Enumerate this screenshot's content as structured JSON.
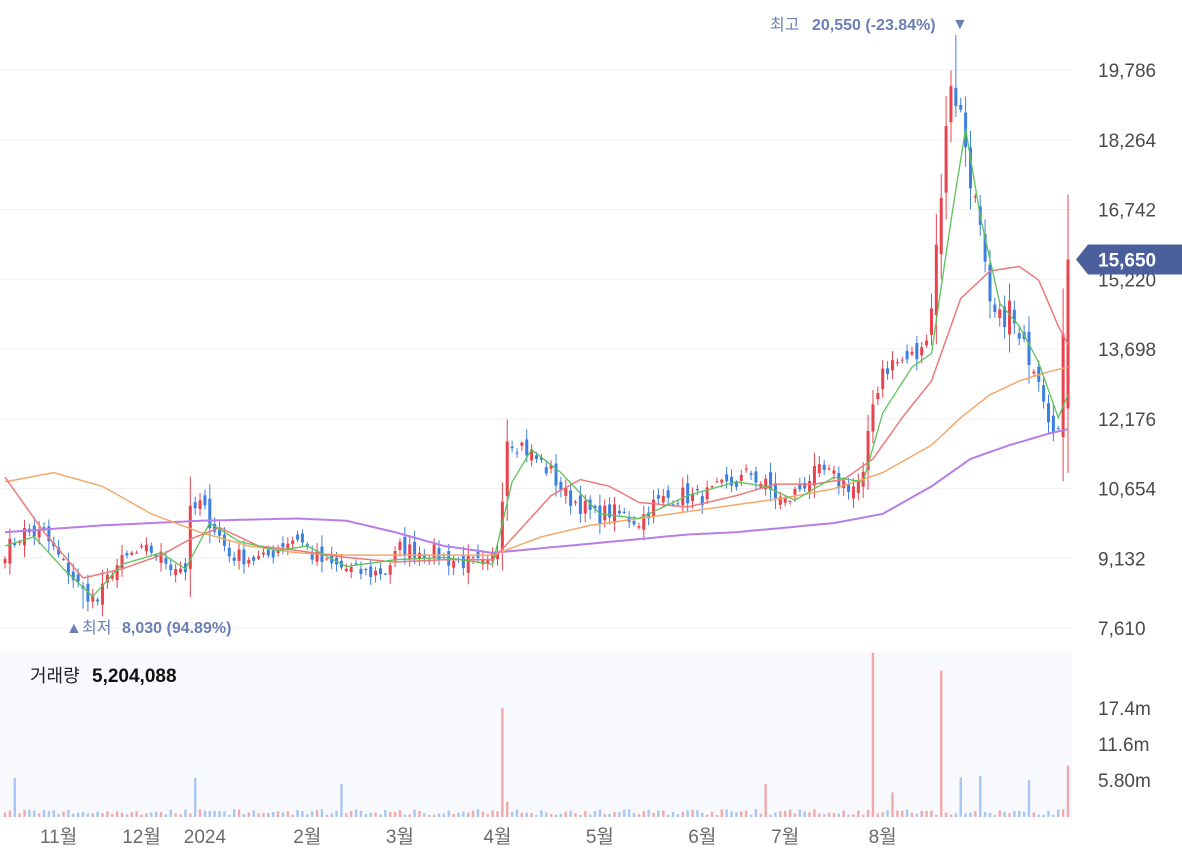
{
  "chart_data": {
    "type": "candlestick",
    "price_axis": {
      "range": [
        7610,
        20550
      ],
      "ticks": [
        "19,786",
        "18,264",
        "16,742",
        "15,220",
        "13,698",
        "12,176",
        "10,654",
        "9,132",
        "7,610"
      ]
    },
    "months": [
      "11월",
      "12월",
      "2024",
      "2월",
      "3월",
      "4월",
      "5월",
      "6월",
      "7월",
      "8월"
    ],
    "current_price": {
      "label": "15,650",
      "value": 15650
    },
    "high_marker": {
      "label": "최고",
      "value_text": "20,550 (-23.84%)",
      "value": 20550,
      "arrow": "▼"
    },
    "low_marker": {
      "label": "최저",
      "value_text": "8,030 (94.89%)",
      "value": 8030,
      "arrow": "▲"
    },
    "volume": {
      "title": "거래량",
      "current": "5,204,088",
      "ticks": [
        "17.4m",
        "11.6m",
        "5.80m"
      ],
      "ticks_values": [
        17.4,
        11.6,
        5.8
      ]
    },
    "colors": {
      "up": "#e8434f",
      "down": "#3d7fe0",
      "ma5": "#5cc35a",
      "ma20": "#ec7a7a",
      "ma60": "#f4a96b",
      "ma120": "#b77ee8",
      "badge": "#4a5f9c"
    },
    "series_anchors": {
      "close": [
        [
          0,
          9300
        ],
        [
          4,
          9700
        ],
        [
          8,
          9650
        ],
        [
          12,
          9000
        ],
        [
          16,
          8400
        ],
        [
          19,
          8200
        ],
        [
          22,
          8900
        ],
        [
          26,
          9200
        ],
        [
          30,
          9300
        ],
        [
          34,
          9000
        ],
        [
          37,
          8900
        ],
        [
          38,
          10100
        ],
        [
          40,
          10300
        ],
        [
          43,
          9800
        ],
        [
          46,
          9200
        ],
        [
          50,
          9150
        ],
        [
          53,
          9100
        ],
        [
          57,
          9450
        ],
        [
          60,
          9600
        ],
        [
          63,
          9200
        ],
        [
          66,
          9000
        ],
        [
          70,
          8900
        ],
        [
          74,
          8800
        ],
        [
          78,
          8850
        ],
        [
          81,
          9350
        ],
        [
          84,
          9300
        ],
        [
          88,
          9250
        ],
        [
          91,
          9100
        ],
        [
          94,
          9050
        ],
        [
          97,
          9000
        ],
        [
          99,
          8950
        ],
        [
          101,
          9350
        ],
        [
          103,
          11800
        ],
        [
          106,
          11600
        ],
        [
          109,
          11300
        ],
        [
          112,
          11000
        ],
        [
          115,
          10500
        ],
        [
          118,
          10300
        ],
        [
          121,
          10050
        ],
        [
          124,
          10150
        ],
        [
          127,
          10050
        ],
        [
          130,
          9950
        ],
        [
          133,
          10300
        ],
        [
          136,
          10450
        ],
        [
          139,
          10500
        ],
        [
          142,
          10450
        ],
        [
          145,
          10550
        ],
        [
          148,
          10700
        ],
        [
          151,
          10850
        ],
        [
          153,
          11000
        ],
        [
          155,
          10800
        ],
        [
          158,
          10500
        ],
        [
          160,
          10350
        ],
        [
          162,
          10550
        ],
        [
          165,
          10900
        ],
        [
          168,
          11000
        ],
        [
          171,
          10800
        ],
        [
          174,
          10700
        ],
        [
          176,
          10900
        ],
        [
          178,
          12500
        ],
        [
          180,
          13300
        ],
        [
          183,
          13400
        ],
        [
          186,
          13500
        ],
        [
          188,
          13600
        ],
        [
          190,
          14700
        ],
        [
          192,
          17200
        ],
        [
          194,
          19600
        ],
        [
          196,
          18800
        ],
        [
          198,
          17500
        ],
        [
          200,
          16200
        ],
        [
          202,
          14500
        ],
        [
          204,
          14300
        ],
        [
          206,
          14600
        ],
        [
          208,
          13800
        ],
        [
          210,
          13600
        ],
        [
          212,
          13200
        ],
        [
          214,
          12300
        ],
        [
          216,
          11900
        ],
        [
          218,
          15650
        ]
      ],
      "ma5": [
        [
          0,
          9400
        ],
        [
          6,
          9600
        ],
        [
          12,
          8900
        ],
        [
          18,
          8300
        ],
        [
          24,
          9000
        ],
        [
          32,
          9250
        ],
        [
          37,
          8900
        ],
        [
          42,
          9900
        ],
        [
          48,
          9500
        ],
        [
          56,
          9300
        ],
        [
          62,
          9400
        ],
        [
          70,
          8950
        ],
        [
          80,
          9100
        ],
        [
          90,
          9150
        ],
        [
          100,
          9000
        ],
        [
          104,
          10800
        ],
        [
          108,
          11500
        ],
        [
          114,
          11000
        ],
        [
          122,
          10100
        ],
        [
          130,
          10000
        ],
        [
          140,
          10500
        ],
        [
          150,
          10800
        ],
        [
          156,
          10700
        ],
        [
          162,
          10400
        ],
        [
          170,
          10900
        ],
        [
          176,
          10800
        ],
        [
          180,
          12300
        ],
        [
          186,
          13300
        ],
        [
          190,
          13600
        ],
        [
          194,
          16500
        ],
        [
          197,
          18500
        ],
        [
          200,
          16600
        ],
        [
          204,
          14700
        ],
        [
          208,
          14200
        ],
        [
          212,
          13400
        ],
        [
          216,
          12200
        ],
        [
          218,
          12700
        ]
      ],
      "ma20": [
        [
          0,
          10900
        ],
        [
          8,
          9700
        ],
        [
          16,
          8700
        ],
        [
          24,
          8900
        ],
        [
          32,
          9200
        ],
        [
          38,
          9550
        ],
        [
          44,
          9800
        ],
        [
          52,
          9400
        ],
        [
          60,
          9300
        ],
        [
          70,
          9150
        ],
        [
          80,
          9050
        ],
        [
          90,
          9100
        ],
        [
          100,
          9100
        ],
        [
          106,
          9800
        ],
        [
          112,
          10500
        ],
        [
          118,
          10850
        ],
        [
          124,
          10700
        ],
        [
          130,
          10350
        ],
        [
          140,
          10250
        ],
        [
          150,
          10500
        ],
        [
          158,
          10750
        ],
        [
          166,
          10750
        ],
        [
          172,
          10850
        ],
        [
          178,
          11300
        ],
        [
          184,
          12200
        ],
        [
          190,
          13000
        ],
        [
          196,
          14800
        ],
        [
          202,
          15400
        ],
        [
          208,
          15500
        ],
        [
          212,
          15200
        ],
        [
          216,
          14200
        ],
        [
          218,
          13800
        ]
      ],
      "ma60": [
        [
          0,
          10800
        ],
        [
          10,
          11000
        ],
        [
          20,
          10700
        ],
        [
          30,
          10100
        ],
        [
          40,
          9700
        ],
        [
          50,
          9400
        ],
        [
          60,
          9250
        ],
        [
          70,
          9200
        ],
        [
          80,
          9200
        ],
        [
          90,
          9200
        ],
        [
          100,
          9200
        ],
        [
          110,
          9600
        ],
        [
          120,
          9850
        ],
        [
          130,
          10000
        ],
        [
          140,
          10150
        ],
        [
          150,
          10300
        ],
        [
          160,
          10450
        ],
        [
          170,
          10650
        ],
        [
          180,
          11000
        ],
        [
          190,
          11600
        ],
        [
          196,
          12200
        ],
        [
          202,
          12700
        ],
        [
          208,
          13000
        ],
        [
          214,
          13200
        ],
        [
          218,
          13300
        ]
      ],
      "ma120": [
        [
          0,
          9700
        ],
        [
          20,
          9850
        ],
        [
          40,
          9950
        ],
        [
          60,
          10000
        ],
        [
          70,
          9950
        ],
        [
          80,
          9700
        ],
        [
          90,
          9400
        ],
        [
          100,
          9250
        ],
        [
          110,
          9350
        ],
        [
          120,
          9450
        ],
        [
          130,
          9550
        ],
        [
          140,
          9650
        ],
        [
          150,
          9700
        ],
        [
          160,
          9800
        ],
        [
          170,
          9900
        ],
        [
          180,
          10100
        ],
        [
          190,
          10700
        ],
        [
          198,
          11300
        ],
        [
          206,
          11600
        ],
        [
          214,
          11850
        ],
        [
          218,
          11950
        ]
      ]
    }
  }
}
